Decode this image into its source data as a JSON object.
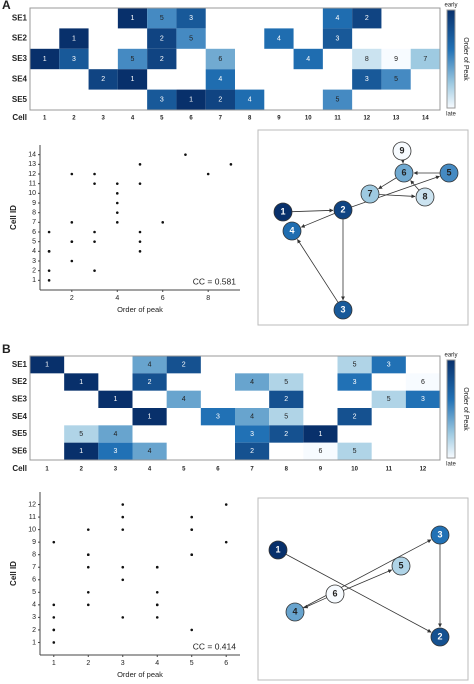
{
  "panel_labels": [
    "A",
    "B"
  ],
  "chart_data": [
    {
      "type": "heatmap",
      "rows": [
        "SE1",
        "SE2",
        "SE3",
        "SE4",
        "SE5"
      ],
      "x_label": "Cell",
      "columns": [
        1,
        2,
        3,
        4,
        5,
        6,
        7,
        8,
        9,
        10,
        11,
        12,
        13,
        14
      ],
      "values": [
        [
          null,
          null,
          null,
          1,
          5,
          3,
          null,
          null,
          null,
          null,
          4,
          2,
          null,
          null
        ],
        [
          null,
          1,
          null,
          null,
          2,
          5,
          null,
          null,
          4,
          null,
          3,
          null,
          null,
          null
        ],
        [
          1,
          3,
          null,
          5,
          2,
          null,
          6,
          null,
          null,
          4,
          null,
          8,
          9,
          7
        ],
        [
          null,
          null,
          2,
          1,
          null,
          null,
          4,
          null,
          null,
          null,
          null,
          3,
          5,
          null
        ],
        [
          null,
          null,
          null,
          null,
          3,
          1,
          2,
          4,
          null,
          null,
          5,
          null,
          null,
          null
        ]
      ],
      "clim": [
        1,
        9
      ],
      "colorbar_title": "Order of Peak",
      "colorbar_labels": [
        "early",
        "late"
      ]
    },
    {
      "type": "scatter",
      "xlabel": "Order of peak",
      "ylabel": "Cell ID",
      "annotation": "CC = 0.581",
      "x": [
        1,
        5,
        3,
        4,
        2,
        1,
        2,
        5,
        4,
        3,
        1,
        3,
        5,
        2,
        6,
        4,
        8,
        9,
        7,
        2,
        1,
        4,
        3,
        5,
        3,
        1,
        2,
        4,
        5
      ],
      "y": [
        4,
        5,
        6,
        11,
        12,
        2,
        5,
        6,
        9,
        11,
        1,
        2,
        4,
        5,
        7,
        10,
        12,
        13,
        14,
        3,
        4,
        7,
        12,
        13,
        5,
        6,
        7,
        8,
        11
      ],
      "xlim": [
        0.6,
        9.4
      ],
      "xticks": [
        2,
        4,
        6,
        8
      ],
      "ylim": [
        0,
        15
      ],
      "yticks": [
        1,
        2,
        3,
        4,
        5,
        6,
        7,
        8,
        9,
        10,
        11,
        12,
        13,
        14
      ]
    },
    {
      "type": "network",
      "nodes": [
        "1",
        "2",
        "3",
        "4",
        "5",
        "6",
        "7",
        "8",
        "9"
      ]
    },
    {
      "type": "heatmap",
      "rows": [
        "SE1",
        "SE2",
        "SE3",
        "SE4",
        "SE5",
        "SE6"
      ],
      "x_label": "Cell",
      "columns": [
        1,
        2,
        3,
        4,
        5,
        6,
        7,
        8,
        9,
        10,
        11,
        12
      ],
      "values": [
        [
          1,
          null,
          null,
          4,
          2,
          null,
          null,
          null,
          null,
          5,
          3,
          null
        ],
        [
          null,
          1,
          null,
          2,
          null,
          null,
          4,
          5,
          null,
          3,
          null,
          6
        ],
        [
          null,
          null,
          1,
          null,
          4,
          null,
          null,
          2,
          null,
          null,
          5,
          3
        ],
        [
          null,
          null,
          null,
          1,
          null,
          3,
          4,
          5,
          null,
          2,
          null,
          null
        ],
        [
          null,
          5,
          4,
          null,
          null,
          null,
          3,
          2,
          1,
          null,
          null,
          null
        ],
        [
          null,
          1,
          3,
          4,
          null,
          null,
          2,
          null,
          6,
          5,
          null,
          null
        ]
      ],
      "clim": [
        1,
        6
      ],
      "colorbar_title": "Order of Peak",
      "colorbar_labels": [
        "early",
        "late"
      ]
    },
    {
      "type": "scatter",
      "xlabel": "Order of peak",
      "ylabel": "Cell ID",
      "annotation": "CC = 0.414",
      "x": [
        1,
        4,
        2,
        5,
        3,
        1,
        2,
        4,
        5,
        3,
        6,
        1,
        4,
        2,
        5,
        3,
        1,
        3,
        4,
        5,
        2,
        5,
        4,
        3,
        2,
        1,
        1,
        3,
        4,
        2,
        6,
        5
      ],
      "y": [
        1,
        4,
        5,
        10,
        11,
        2,
        4,
        7,
        8,
        10,
        12,
        3,
        5,
        8,
        11,
        12,
        4,
        6,
        7,
        8,
        10,
        2,
        3,
        7,
        8,
        9,
        2,
        3,
        4,
        7,
        9,
        10
      ],
      "xlim": [
        0.6,
        6.4
      ],
      "xticks": [
        1,
        2,
        3,
        4,
        5,
        6
      ],
      "ylim": [
        0,
        13
      ],
      "yticks": [
        1,
        2,
        3,
        4,
        5,
        6,
        7,
        8,
        9,
        10,
        11,
        12
      ]
    },
    {
      "type": "network",
      "nodes": [
        "1",
        "2",
        "3",
        "4",
        "5",
        "6"
      ]
    }
  ]
}
